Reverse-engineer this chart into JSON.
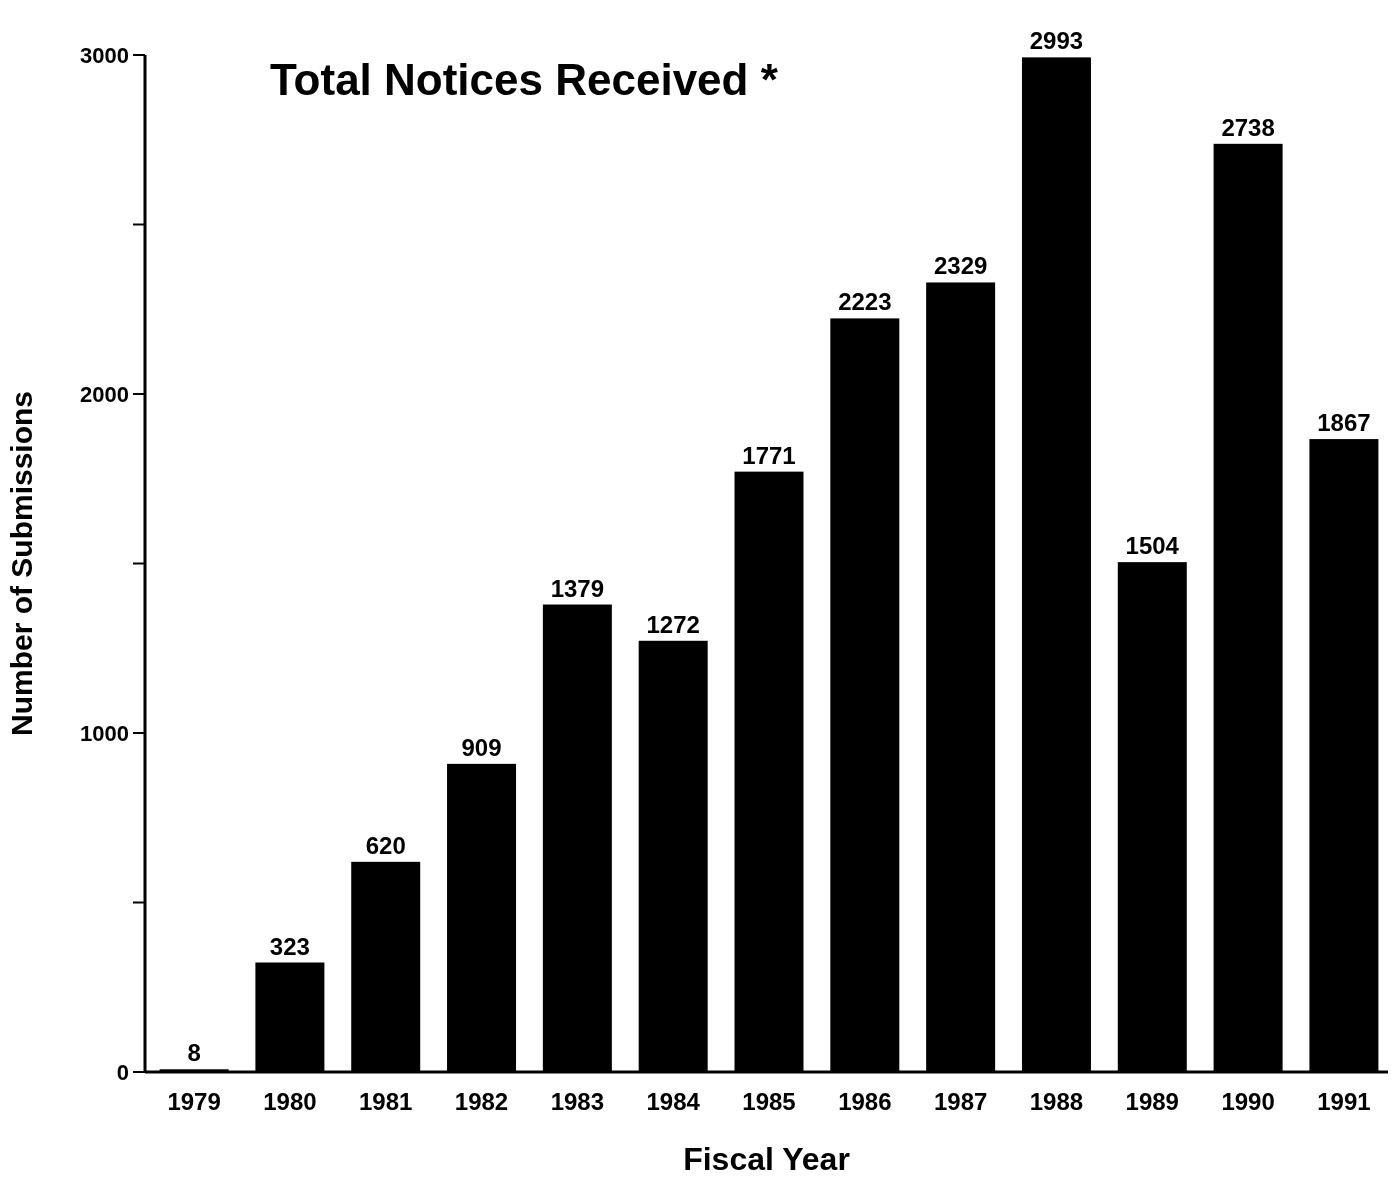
{
  "chart_data": {
    "type": "bar",
    "title": "Total Notices Received *",
    "xlabel": "Fiscal Year",
    "ylabel": "Number of Submissions",
    "categories": [
      "1979",
      "1980",
      "1981",
      "1982",
      "1983",
      "1984",
      "1985",
      "1986",
      "1987",
      "1988",
      "1989",
      "1990",
      "1991"
    ],
    "values": [
      8,
      323,
      620,
      909,
      1379,
      1272,
      1771,
      2223,
      2329,
      2993,
      1504,
      2738,
      1867
    ],
    "color": "#000000",
    "ylim": [
      0,
      3000
    ],
    "yticks": [
      0,
      {
        "value": 500,
        "label": null
      },
      1000,
      {
        "value": 1500,
        "label": null
      },
      2000,
      {
        "value": 2500,
        "label": null
      },
      3000
    ],
    "data_labels": true
  }
}
